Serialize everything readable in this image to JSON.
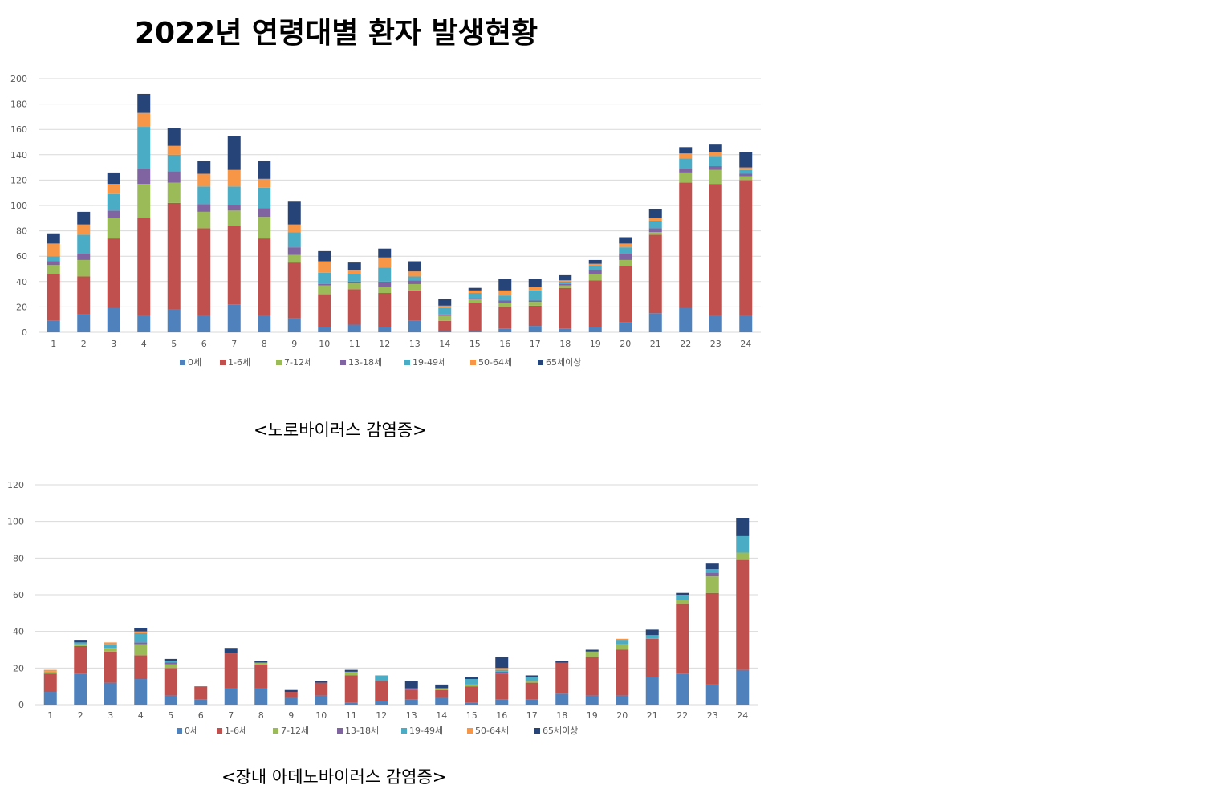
{
  "title": "2022년 연령대별 환자 발생현황",
  "colors": {
    "0세": "#4f81bd",
    "1-6세": "#c0504d",
    "7-12세": "#9bbb59",
    "13-18세": "#8064a2",
    "19-49세": "#4bacc6",
    "50-64세": "#f79646",
    "65세이상": "#264478"
  },
  "chart_data": [
    {
      "type": "bar",
      "stacked": true,
      "title": "",
      "caption": "<노로바이러스 감염증>",
      "categories": [
        "1",
        "2",
        "3",
        "4",
        "5",
        "6",
        "7",
        "8",
        "9",
        "10",
        "11",
        "12",
        "13",
        "14",
        "15",
        "16",
        "17",
        "18",
        "19",
        "20",
        "21",
        "22",
        "23",
        "24"
      ],
      "ylim": [
        0,
        200
      ],
      "yticks": [
        0,
        20,
        40,
        60,
        80,
        100,
        120,
        140,
        160,
        180,
        200
      ],
      "grid": true,
      "legend_position": "bottom",
      "series": [
        {
          "name": "0세",
          "values": [
            9,
            14,
            19,
            13,
            18,
            13,
            22,
            13,
            11,
            4,
            6,
            4,
            9,
            1,
            1,
            3,
            5,
            3,
            4,
            8,
            15,
            19,
            13,
            13
          ]
        },
        {
          "name": "1-6세",
          "values": [
            37,
            30,
            55,
            77,
            84,
            69,
            62,
            61,
            44,
            26,
            28,
            27,
            24,
            8,
            22,
            17,
            16,
            32,
            37,
            44,
            62,
            99,
            104,
            107
          ]
        },
        {
          "name": "7-12세",
          "values": [
            7,
            13,
            16,
            27,
            16,
            13,
            12,
            17,
            6,
            7,
            5,
            5,
            5,
            4,
            3,
            3,
            3,
            2,
            5,
            5,
            2,
            8,
            11,
            3
          ]
        },
        {
          "name": "13-18세",
          "values": [
            3,
            5,
            6,
            12,
            9,
            6,
            4,
            7,
            6,
            1,
            1,
            4,
            3,
            1,
            1,
            2,
            1,
            1,
            3,
            5,
            3,
            3,
            3,
            2
          ]
        },
        {
          "name": "19-49세",
          "values": [
            4,
            15,
            13,
            33,
            13,
            14,
            15,
            16,
            12,
            9,
            6,
            11,
            3,
            5,
            4,
            4,
            8,
            2,
            3,
            5,
            6,
            8,
            8,
            3
          ]
        },
        {
          "name": "50-64세",
          "values": [
            10,
            8,
            8,
            11,
            7,
            10,
            13,
            7,
            6,
            9,
            3,
            8,
            4,
            2,
            2,
            4,
            3,
            1,
            2,
            3,
            2,
            4,
            3,
            2
          ]
        },
        {
          "name": "65세이상",
          "values": [
            8,
            10,
            9,
            15,
            14,
            10,
            27,
            14,
            18,
            8,
            6,
            7,
            8,
            5,
            2,
            9,
            6,
            4,
            3,
            5,
            7,
            5,
            6,
            12
          ]
        }
      ]
    },
    {
      "type": "bar",
      "stacked": true,
      "title": "",
      "caption": "<장내 아데노바이러스 감염증>",
      "categories": [
        "1",
        "2",
        "3",
        "4",
        "5",
        "6",
        "7",
        "8",
        "9",
        "10",
        "11",
        "12",
        "13",
        "14",
        "15",
        "16",
        "17",
        "18",
        "19",
        "20",
        "21",
        "22",
        "23",
        "24"
      ],
      "ylim": [
        0,
        120
      ],
      "yticks": [
        0,
        20,
        40,
        60,
        80,
        100,
        120
      ],
      "grid": true,
      "legend_position": "bottom",
      "series": [
        {
          "name": "0세",
          "values": [
            7,
            17,
            12,
            14,
            5,
            3,
            9,
            9,
            4,
            5,
            1,
            2,
            3,
            4,
            1,
            3,
            3,
            6,
            5,
            5,
            15,
            17,
            11,
            19
          ]
        },
        {
          "name": "1-6세",
          "values": [
            10,
            15,
            17,
            13,
            15,
            7,
            19,
            13,
            3,
            7,
            15,
            11,
            5,
            4,
            9,
            14,
            9,
            17,
            21,
            25,
            21,
            38,
            50,
            60
          ]
        },
        {
          "name": "7-12세",
          "values": [
            1,
            1,
            2,
            6,
            2,
            0,
            0,
            1,
            0,
            0,
            2,
            0,
            0,
            1,
            1,
            0,
            1,
            0,
            3,
            3,
            0,
            2,
            9,
            4
          ]
        },
        {
          "name": "13-18세",
          "values": [
            0,
            0,
            0,
            1,
            1,
            0,
            0,
            0,
            0,
            0,
            0,
            0,
            1,
            0,
            0,
            1,
            0,
            0,
            0,
            0,
            0,
            0,
            2,
            0
          ]
        },
        {
          "name": "19-49세",
          "values": [
            0,
            1,
            2,
            5,
            1,
            0,
            0,
            0,
            0,
            0,
            0,
            3,
            0,
            0,
            3,
            1,
            2,
            0,
            0,
            2,
            2,
            3,
            2,
            9
          ]
        },
        {
          "name": "50-64세",
          "values": [
            1,
            0,
            1,
            1,
            0,
            0,
            0,
            0,
            0,
            0,
            0,
            0,
            0,
            0,
            0,
            1,
            0,
            0,
            0,
            1,
            0,
            0,
            0,
            0
          ]
        },
        {
          "name": "65세이상",
          "values": [
            0,
            1,
            0,
            2,
            1,
            0,
            3,
            1,
            1,
            1,
            1,
            0,
            4,
            2,
            1,
            6,
            1,
            1,
            1,
            0,
            3,
            1,
            3,
            10
          ]
        }
      ]
    }
  ]
}
